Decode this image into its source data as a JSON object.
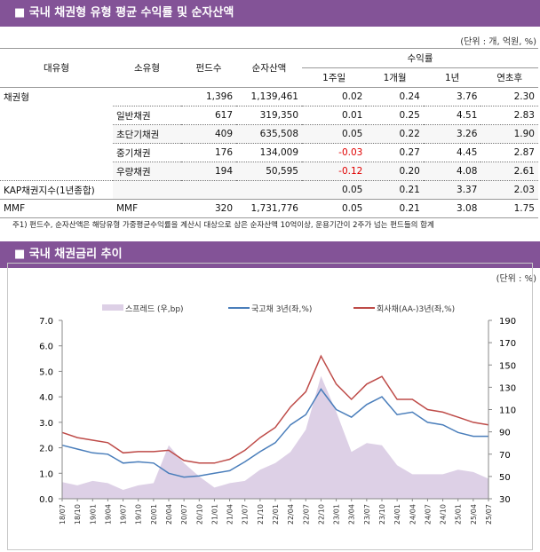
{
  "section1": {
    "title": "■ 국내 채권형 유형 평균 수익률 및 순자산액",
    "unit": "(단위 : 개, 억원, %)"
  },
  "table": {
    "headers": {
      "major": "대유형",
      "minor": "소유형",
      "funds": "펀드수",
      "assets": "순자산액",
      "returns": "수익률",
      "w1": "1주일",
      "m1": "1개월",
      "y1": "1년",
      "ytd": "연초후"
    },
    "rows": [
      {
        "major": "채권형",
        "minor": "",
        "funds": "1,396",
        "assets": "1,139,461",
        "w1": "0.02",
        "m1": "0.24",
        "y1": "3.76",
        "ytd": "2.30"
      },
      {
        "major": "",
        "minor": "일반채권",
        "funds": "617",
        "assets": "319,350",
        "w1": "0.01",
        "m1": "0.25",
        "y1": "4.51",
        "ytd": "2.83"
      },
      {
        "major": "",
        "minor": "초단기채권",
        "funds": "409",
        "assets": "635,508",
        "w1": "0.05",
        "m1": "0.22",
        "y1": "3.26",
        "ytd": "1.90"
      },
      {
        "major": "",
        "minor": "중기채권",
        "funds": "176",
        "assets": "134,009",
        "w1": "-0.03",
        "m1": "0.27",
        "y1": "4.45",
        "ytd": "2.87"
      },
      {
        "major": "",
        "minor": "우량채권",
        "funds": "194",
        "assets": "50,595",
        "w1": "-0.12",
        "m1": "0.20",
        "y1": "4.08",
        "ytd": "2.61"
      },
      {
        "major": "KAP채권지수(1년종합)",
        "minor": "",
        "funds": "",
        "assets": "",
        "w1": "0.05",
        "m1": "0.21",
        "y1": "3.37",
        "ytd": "2.03"
      },
      {
        "major": "MMF",
        "minor": "MMF",
        "funds": "320",
        "assets": "1,731,776",
        "w1": "0.05",
        "m1": "0.21",
        "y1": "3.08",
        "ytd": "1.75"
      }
    ],
    "note": "주1) 펀드수, 순자산액은 해당유형 가중평균수익률을 계산시 대상으로 삼은 순자산액 10억이상, 운용기간이 2주가 넘는 펀드들의 합계"
  },
  "section2": {
    "title": "■ 국내 채권금리 추이",
    "unit": "(단위 : %)"
  },
  "chart_data": {
    "type": "line",
    "x": [
      "18/07",
      "18/10",
      "19/01",
      "19/04",
      "19/07",
      "19/10",
      "20/01",
      "20/04",
      "20/07",
      "20/10",
      "21/01",
      "21/04",
      "21/07",
      "21/10",
      "22/01",
      "22/04",
      "22/07",
      "22/10",
      "23/01",
      "23/04",
      "23/07",
      "23/10",
      "24/01",
      "24/04",
      "24/07",
      "24/10",
      "25/01",
      "25/04",
      "25/07"
    ],
    "yleft": {
      "range": [
        0,
        7
      ],
      "ticks": [
        "0.0",
        "1.0",
        "2.0",
        "3.0",
        "4.0",
        "5.0",
        "6.0",
        "7.0"
      ]
    },
    "yright": {
      "range": [
        30,
        190
      ],
      "ticks": [
        "30",
        "50",
        "70",
        "90",
        "110",
        "130",
        "150",
        "170",
        "190"
      ]
    },
    "series": [
      {
        "name": "스프레드 (우,bp)",
        "type": "area",
        "axis": "right",
        "color": "#ddd0e6",
        "values": [
          45,
          42,
          46,
          44,
          38,
          42,
          44,
          78,
          62,
          50,
          40,
          44,
          46,
          56,
          62,
          72,
          92,
          140,
          108,
          72,
          80,
          78,
          60,
          52,
          52,
          52,
          56,
          54,
          48
        ]
      },
      {
        "name": "국고채 3년(좌,%)",
        "type": "line",
        "axis": "left",
        "color": "#4a7ebb",
        "values": [
          2.1,
          1.95,
          1.8,
          1.75,
          1.4,
          1.45,
          1.4,
          1.0,
          0.85,
          0.9,
          1.0,
          1.1,
          1.45,
          1.85,
          2.2,
          2.9,
          3.3,
          4.3,
          3.5,
          3.2,
          3.7,
          4.0,
          3.3,
          3.4,
          3.0,
          2.9,
          2.6,
          2.45,
          2.45
        ]
      },
      {
        "name": "회사채(AA-)3년(좌,%)",
        "type": "line",
        "axis": "left",
        "color": "#be4b48",
        "values": [
          2.6,
          2.4,
          2.3,
          2.2,
          1.8,
          1.85,
          1.85,
          1.9,
          1.5,
          1.4,
          1.4,
          1.55,
          1.9,
          2.4,
          2.8,
          3.6,
          4.2,
          5.6,
          4.5,
          3.9,
          4.5,
          4.8,
          3.9,
          3.9,
          3.5,
          3.4,
          3.2,
          3.0,
          2.9
        ]
      }
    ],
    "legend": "top"
  }
}
